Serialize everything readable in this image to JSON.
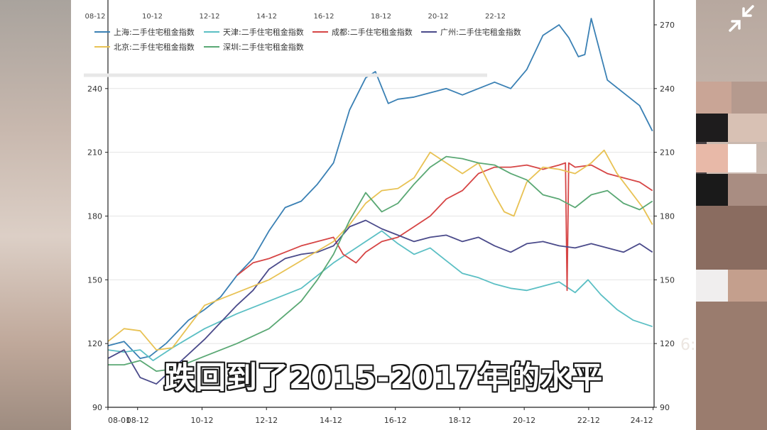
{
  "chart_data": {
    "type": "line",
    "title": "",
    "xlabel": "",
    "ylabel": "",
    "ylim": [
      90,
      275
    ],
    "grid": true,
    "legend_position": "top-left",
    "left_ticks": [
      240,
      210,
      180,
      150,
      120,
      90
    ],
    "right_ticks": [
      270,
      240,
      210,
      180,
      150,
      120,
      90
    ],
    "top_ticks": [
      "08-12",
      "10-12",
      "12-12",
      "14-12",
      "16-12",
      "18-12",
      "20-12",
      "22-12"
    ],
    "bottom_ticks": [
      "08-01",
      "08-12",
      "10-12",
      "12-12",
      "14-12",
      "16-12",
      "18-12",
      "20-12",
      "22-12",
      "24-12"
    ],
    "legend": [
      "上海:二手住宅租金指数",
      "天津:二手住宅租金指数",
      "成都:二手住宅租金指数",
      "广州:二手住宅租金指数",
      "北京:二手住宅租金指数",
      "深圳:二手住宅租金指数"
    ],
    "series": [
      {
        "name": "上海:二手住宅租金指数",
        "color": "#3a80b4",
        "x": [
          2008.0,
          2008.5,
          2009.0,
          2009.3,
          2009.8,
          2010.5,
          2011.0,
          2011.5,
          2012.0,
          2012.5,
          2013.0,
          2013.5,
          2014.0,
          2014.5,
          2015.0,
          2015.5,
          2016.0,
          2016.3,
          2016.7,
          2017.0,
          2017.5,
          2018.0,
          2018.5,
          2019.0,
          2019.5,
          2020.0,
          2020.5,
          2021.0,
          2021.5,
          2022.0,
          2022.3,
          2022.6,
          2022.8,
          2023.0,
          2023.5,
          2024.0,
          2024.5,
          2024.9
        ],
        "y": [
          119,
          121,
          113,
          114,
          120,
          131,
          136,
          142,
          152,
          160,
          173,
          184,
          187,
          195,
          205,
          230,
          245,
          248,
          233,
          235,
          236,
          238,
          240,
          237,
          240,
          243,
          240,
          249,
          265,
          270,
          264,
          255,
          256,
          273,
          244,
          238,
          232,
          220
        ]
      },
      {
        "name": "天津:二手住宅租金指数",
        "color": "#5bbfc4",
        "x": [
          2008.0,
          2008.5,
          2009.0,
          2009.4,
          2010.0,
          2011.0,
          2012.0,
          2013.0,
          2014.0,
          2014.5,
          2015.0,
          2015.5,
          2016.0,
          2016.5,
          2017.0,
          2017.5,
          2018.0,
          2018.5,
          2019.0,
          2019.5,
          2020.0,
          2020.5,
          2021.0,
          2021.5,
          2022.0,
          2022.5,
          2022.9,
          2023.3,
          2023.8,
          2024.3,
          2024.9
        ],
        "y": [
          117,
          116,
          117,
          112,
          118,
          127,
          134,
          140,
          146,
          152,
          158,
          163,
          168,
          173,
          167,
          162,
          165,
          159,
          153,
          151,
          148,
          146,
          145,
          147,
          149,
          144,
          150,
          143,
          136,
          131,
          128
        ]
      },
      {
        "name": "成都:二手住宅租金指数",
        "color": "#d64545",
        "x": [
          2012.0,
          2012.5,
          2013.0,
          2013.5,
          2014.0,
          2014.5,
          2015.0,
          2015.3,
          2015.7,
          2016.0,
          2016.5,
          2017.0,
          2017.5,
          2018.0,
          2018.5,
          2019.0,
          2019.5,
          2020.0,
          2020.5,
          2021.0,
          2021.5,
          2022.0,
          2022.2,
          2022.25,
          2022.3,
          2022.5,
          2023.0,
          2023.5,
          2024.0,
          2024.5,
          2024.9
        ],
        "y": [
          152,
          158,
          160,
          163,
          166,
          168,
          170,
          162,
          158,
          163,
          168,
          170,
          175,
          180,
          188,
          192,
          200,
          203,
          203,
          204,
          202,
          204,
          205,
          145,
          205,
          203,
          204,
          200,
          198,
          196,
          192
        ]
      },
      {
        "name": "广州:二手住宅租金指数",
        "color": "#4a4a8a",
        "x": [
          2008.0,
          2008.5,
          2009.0,
          2009.5,
          2010.0,
          2011.0,
          2012.0,
          2012.5,
          2013.0,
          2013.5,
          2014.0,
          2014.5,
          2015.0,
          2015.5,
          2016.0,
          2016.5,
          2017.0,
          2017.5,
          2018.0,
          2018.5,
          2019.0,
          2019.5,
          2020.0,
          2020.5,
          2021.0,
          2021.5,
          2022.0,
          2022.5,
          2023.0,
          2023.5,
          2024.0,
          2024.5,
          2024.9
        ],
        "y": [
          113,
          117,
          104,
          101,
          108,
          122,
          138,
          145,
          155,
          160,
          162,
          163,
          166,
          175,
          178,
          174,
          171,
          168,
          170,
          171,
          168,
          170,
          166,
          163,
          167,
          168,
          166,
          165,
          167,
          165,
          163,
          167,
          163
        ]
      },
      {
        "name": "北京:二手住宅租金指数",
        "color": "#e8c254",
        "x": [
          2008.0,
          2008.5,
          2009.0,
          2009.5,
          2010.0,
          2010.5,
          2011.0,
          2012.0,
          2013.0,
          2014.0,
          2015.0,
          2015.5,
          2016.0,
          2016.5,
          2017.0,
          2017.5,
          2018.0,
          2018.5,
          2019.0,
          2019.5,
          2020.0,
          2020.3,
          2020.6,
          2021.0,
          2021.5,
          2022.0,
          2022.5,
          2023.0,
          2023.4,
          2023.8,
          2024.2,
          2024.6,
          2024.9
        ],
        "y": [
          121,
          127,
          126,
          117,
          118,
          128,
          138,
          144,
          150,
          159,
          168,
          176,
          186,
          192,
          193,
          198,
          210,
          205,
          200,
          205,
          190,
          182,
          180,
          196,
          203,
          202,
          200,
          205,
          211,
          200,
          192,
          184,
          176
        ]
      },
      {
        "name": "深圳:二手住宅租金指数",
        "color": "#5aa874",
        "x": [
          2008.0,
          2008.5,
          2009.0,
          2009.5,
          2010.0,
          2011.0,
          2012.0,
          2013.0,
          2014.0,
          2014.5,
          2015.0,
          2015.5,
          2016.0,
          2016.5,
          2017.0,
          2017.5,
          2018.0,
          2018.5,
          2019.0,
          2019.5,
          2020.0,
          2020.5,
          2021.0,
          2021.5,
          2022.0,
          2022.5,
          2023.0,
          2023.5,
          2024.0,
          2024.5,
          2024.9
        ],
        "y": [
          110,
          110,
          112,
          107,
          108,
          114,
          120,
          127,
          140,
          150,
          162,
          178,
          191,
          182,
          186,
          195,
          203,
          208,
          207,
          205,
          204,
          200,
          197,
          190,
          188,
          184,
          190,
          192,
          186,
          183,
          187
        ]
      }
    ]
  },
  "overlay": {
    "subtitle": "跌回到了2015-2017年的水平",
    "side_number": "6:"
  },
  "icons": {
    "collapse": "collapse-arrows-icon"
  }
}
